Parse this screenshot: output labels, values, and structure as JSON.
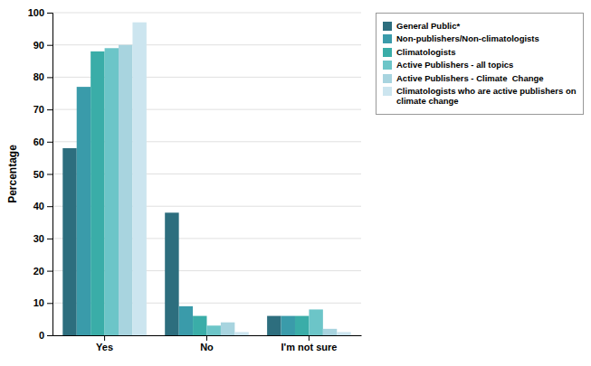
{
  "chart_data": {
    "type": "bar",
    "categories": [
      "Yes",
      "No",
      "I'm not sure"
    ],
    "series": [
      {
        "name": "General Public*",
        "color": "#2d6e7e",
        "values": [
          58,
          38,
          6
        ]
      },
      {
        "name": "Non-publishers/Non-climatologists",
        "color": "#3a9baa",
        "values": [
          77,
          9,
          6
        ]
      },
      {
        "name": "Climatologists",
        "color": "#3aada8",
        "values": [
          88,
          6,
          6
        ]
      },
      {
        "name": "Active Publishers - all topics",
        "color": "#6cc5c8",
        "values": [
          89,
          3,
          8
        ]
      },
      {
        "name": "Active Publishers - Climate  Change",
        "color": "#a8d4df",
        "values": [
          90,
          4,
          2
        ]
      },
      {
        "name": "Climatologists who are active publishers on\nclimate change",
        "color": "#cce5ef",
        "values": [
          97,
          1,
          1
        ]
      }
    ],
    "ylabel": "Percentage",
    "ylim": [
      0,
      100
    ],
    "yticks": [
      0,
      10,
      20,
      30,
      40,
      50,
      60,
      70,
      80,
      90,
      100
    ],
    "grid": true,
    "legend": "upper right"
  }
}
